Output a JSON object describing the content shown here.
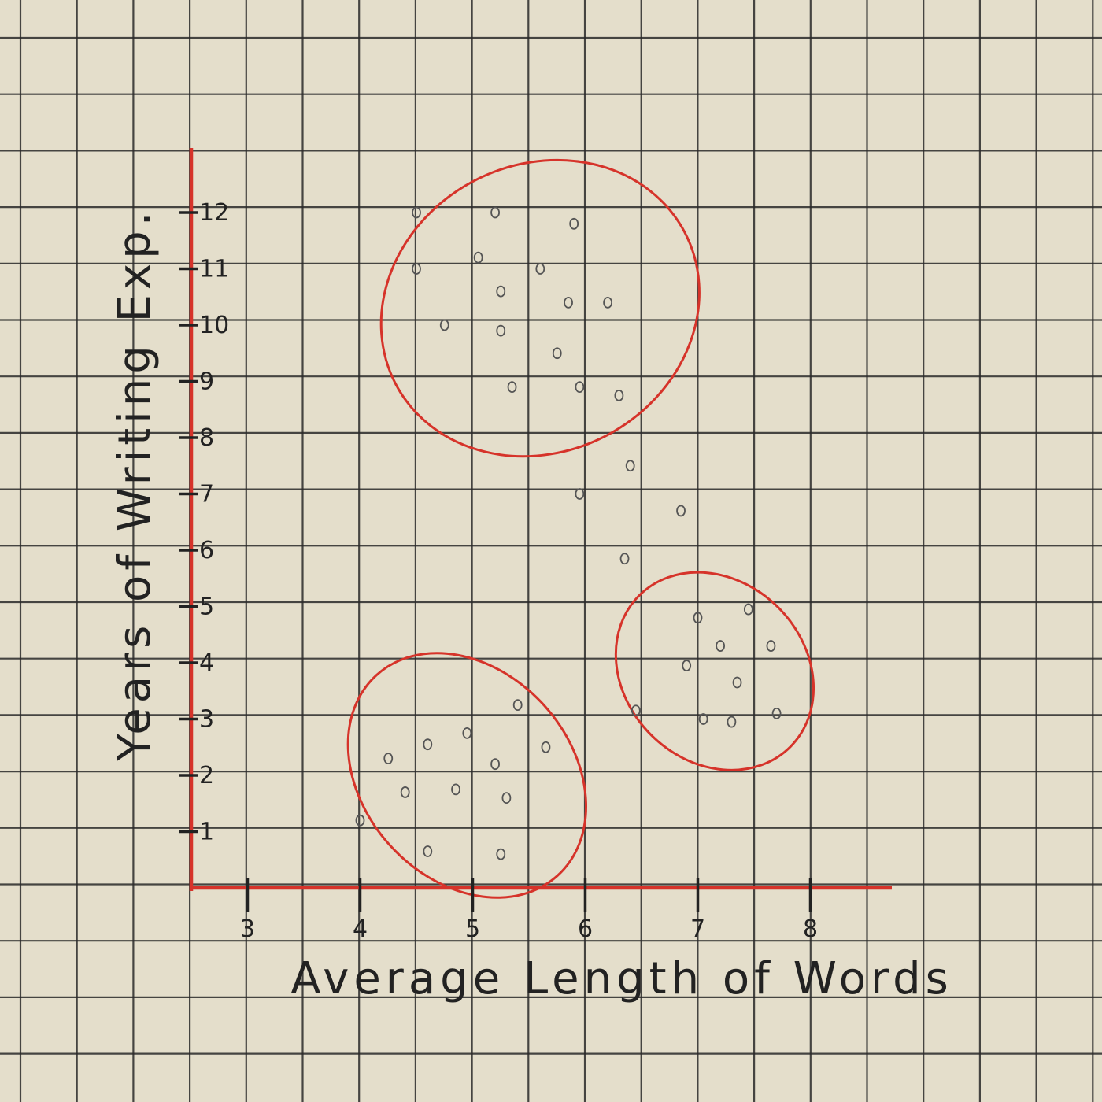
{
  "chart_data": {
    "type": "scatter",
    "title": "",
    "xlabel": "Average Length of Words",
    "ylabel": "Years of Writing Exp.",
    "xticks": [
      3,
      4,
      5,
      6,
      7,
      8
    ],
    "yticks": [
      1,
      2,
      3,
      4,
      5,
      6,
      7,
      8,
      9,
      10,
      11,
      12
    ],
    "xlim": [
      2.5,
      8.7
    ],
    "ylim": [
      0,
      12.5
    ],
    "grid": true,
    "legend": "none",
    "colors": {
      "paper": "#e4decb",
      "grid": "#2a2a2a",
      "axes": "#d6332a",
      "cluster_outline": "#d6332a",
      "points": "#555555",
      "text": "#222222"
    },
    "points": [
      {
        "x": 4.5,
        "y": 12.0
      },
      {
        "x": 5.2,
        "y": 12.0
      },
      {
        "x": 5.9,
        "y": 11.8
      },
      {
        "x": 5.05,
        "y": 11.2
      },
      {
        "x": 4.5,
        "y": 11.0
      },
      {
        "x": 5.6,
        "y": 11.0
      },
      {
        "x": 5.25,
        "y": 10.6
      },
      {
        "x": 5.85,
        "y": 10.4
      },
      {
        "x": 6.2,
        "y": 10.4
      },
      {
        "x": 4.75,
        "y": 10.0
      },
      {
        "x": 5.25,
        "y": 9.9
      },
      {
        "x": 5.75,
        "y": 9.5
      },
      {
        "x": 5.35,
        "y": 8.9
      },
      {
        "x": 5.95,
        "y": 8.9
      },
      {
        "x": 6.3,
        "y": 8.75
      },
      {
        "x": 6.4,
        "y": 7.5
      },
      {
        "x": 5.95,
        "y": 7.0
      },
      {
        "x": 6.85,
        "y": 6.7
      },
      {
        "x": 6.35,
        "y": 5.85
      },
      {
        "x": 7.0,
        "y": 4.8
      },
      {
        "x": 7.45,
        "y": 4.95
      },
      {
        "x": 7.2,
        "y": 4.3
      },
      {
        "x": 7.65,
        "y": 4.3
      },
      {
        "x": 6.9,
        "y": 3.95
      },
      {
        "x": 7.35,
        "y": 3.65
      },
      {
        "x": 6.45,
        "y": 3.15
      },
      {
        "x": 7.05,
        "y": 3.0
      },
      {
        "x": 7.3,
        "y": 2.95
      },
      {
        "x": 7.7,
        "y": 3.1
      },
      {
        "x": 5.4,
        "y": 3.25
      },
      {
        "x": 4.95,
        "y": 2.75
      },
      {
        "x": 4.6,
        "y": 2.55
      },
      {
        "x": 5.65,
        "y": 2.5
      },
      {
        "x": 4.25,
        "y": 2.3
      },
      {
        "x": 5.2,
        "y": 2.2
      },
      {
        "x": 4.4,
        "y": 1.7
      },
      {
        "x": 4.85,
        "y": 1.75
      },
      {
        "x": 5.3,
        "y": 1.6
      },
      {
        "x": 4.0,
        "y": 1.2
      },
      {
        "x": 4.6,
        "y": 0.65
      },
      {
        "x": 5.25,
        "y": 0.6
      }
    ],
    "clusters": [
      {
        "cx": 5.6,
        "cy": 10.3,
        "rx": 1.45,
        "ry": 2.55,
        "rotate": -28
      },
      {
        "cx": 7.15,
        "cy": 3.85,
        "rx": 0.95,
        "ry": 1.6,
        "rotate": 45
      },
      {
        "cx": 4.95,
        "cy": 2.0,
        "rx": 1.2,
        "ry": 1.85,
        "rotate": 48
      }
    ]
  }
}
